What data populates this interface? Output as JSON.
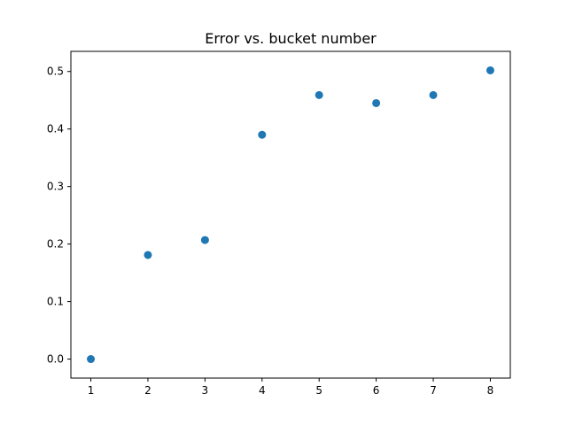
{
  "chart_data": {
    "type": "scatter",
    "title": "Error vs. bucket number",
    "xlabel": "",
    "ylabel": "",
    "x": [
      1,
      2,
      3,
      4,
      5,
      6,
      7,
      8
    ],
    "y": [
      0.0,
      0.181,
      0.207,
      0.39,
      0.459,
      0.445,
      0.459,
      0.502
    ],
    "xlim": [
      0.65,
      8.35
    ],
    "ylim": [
      -0.033,
      0.535
    ],
    "xticks": [
      1,
      2,
      3,
      4,
      5,
      6,
      7,
      8
    ],
    "xtick_labels": [
      "1",
      "2",
      "3",
      "4",
      "5",
      "6",
      "7",
      "8"
    ],
    "yticks": [
      0.0,
      0.1,
      0.2,
      0.3,
      0.4,
      0.5
    ],
    "ytick_labels": [
      "0.0",
      "0.1",
      "0.2",
      "0.3",
      "0.4",
      "0.5"
    ],
    "grid": false,
    "legend": "none",
    "marker_color": "#1f77b4"
  }
}
